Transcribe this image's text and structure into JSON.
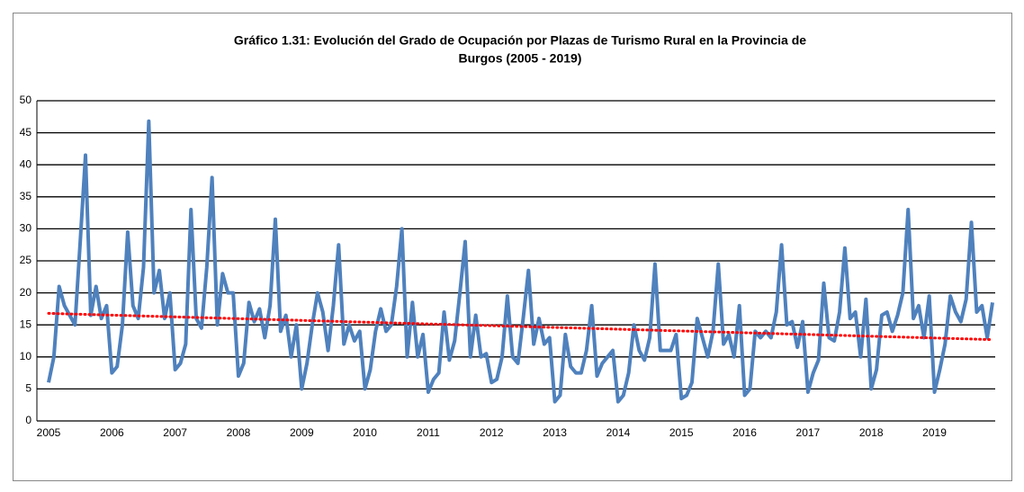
{
  "chart_data": {
    "type": "line",
    "title": [
      "Gráfico 1.31: Evolución del Grado de Ocupación por Plazas de Turismo Rural en la Provincia de",
      "Burgos (2005 - 2019)"
    ],
    "categories": [
      "2005",
      null,
      null,
      null,
      null,
      null,
      null,
      null,
      null,
      null,
      null,
      null,
      "2006",
      null,
      null,
      null,
      null,
      null,
      null,
      null,
      null,
      null,
      null,
      null,
      "2007",
      null,
      null,
      null,
      null,
      null,
      null,
      null,
      null,
      null,
      null,
      null,
      "2008",
      null,
      null,
      null,
      null,
      null,
      null,
      null,
      null,
      null,
      null,
      null,
      "2009",
      null,
      null,
      null,
      null,
      null,
      null,
      null,
      null,
      null,
      null,
      null,
      "2010",
      null,
      null,
      null,
      null,
      null,
      null,
      null,
      null,
      null,
      null,
      null,
      "2011",
      null,
      null,
      null,
      null,
      null,
      null,
      null,
      null,
      null,
      null,
      null,
      "2012",
      null,
      null,
      null,
      null,
      null,
      null,
      null,
      null,
      null,
      null,
      null,
      "2013",
      null,
      null,
      null,
      null,
      null,
      null,
      null,
      null,
      null,
      null,
      null,
      "2014",
      null,
      null,
      null,
      null,
      null,
      null,
      null,
      null,
      null,
      null,
      null,
      "2015",
      null,
      null,
      null,
      null,
      null,
      null,
      null,
      null,
      null,
      null,
      null,
      "2016",
      null,
      null,
      null,
      null,
      null,
      null,
      null,
      null,
      null,
      null,
      null,
      "2017",
      null,
      null,
      null,
      null,
      null,
      null,
      null,
      null,
      null,
      null,
      null,
      "2018",
      null,
      null,
      null,
      null,
      null,
      null,
      null,
      null,
      null,
      null,
      null,
      "2019",
      null,
      null,
      null,
      null,
      null,
      null,
      null,
      null,
      null,
      null,
      null
    ],
    "series": [
      {
        "color": "#4f81bd",
        "values": [
          6,
          10,
          21,
          18,
          16.5,
          15,
          28,
          41.5,
          16.5,
          21,
          16,
          18,
          7.5,
          8.5,
          15,
          29.5,
          18,
          16,
          24,
          46.8,
          20,
          23.5,
          16,
          20,
          8,
          9,
          12,
          33,
          16,
          14.5,
          24,
          38,
          15,
          23,
          20,
          20,
          7,
          9,
          18.5,
          15.5,
          17.5,
          13,
          18,
          31.5,
          14,
          16.5,
          10,
          15,
          5,
          9,
          15,
          20,
          17,
          11,
          18,
          27.5,
          12,
          15,
          12.5,
          14,
          5,
          8,
          14,
          17.5,
          14,
          15,
          21,
          30,
          10,
          18.5,
          10,
          13.5,
          4.5,
          6.5,
          7.5,
          17,
          9.5,
          12.5,
          20,
          28,
          10,
          16.5,
          10,
          10.5,
          6,
          6.5,
          10,
          19.5,
          10,
          9,
          16,
          23.5,
          12,
          16,
          12,
          13,
          3,
          4,
          13.5,
          8.5,
          7.5,
          7.5,
          11,
          18,
          7,
          9,
          10,
          11,
          3,
          4,
          7.5,
          15,
          11,
          9.5,
          13,
          24.5,
          11,
          11,
          11,
          13.5,
          3.5,
          4,
          6,
          16,
          13,
          10,
          14,
          24.5,
          12,
          13.5,
          10,
          18,
          4,
          5,
          14,
          13,
          14,
          13,
          17,
          27.5,
          15,
          15.5,
          11.5,
          15.5,
          4.5,
          7.5,
          9.5,
          21.5,
          13,
          12.5,
          17,
          27,
          16,
          17,
          10,
          19,
          5,
          8,
          16.5,
          17,
          14,
          16.5,
          20,
          33,
          16,
          18,
          13,
          19.5,
          4.5,
          8,
          12,
          19.5,
          17,
          15.5,
          19,
          31,
          17,
          18,
          13,
          18.5
        ]
      }
    ],
    "trendline": {
      "values": [
        16.8,
        12.7
      ],
      "color": "#ff0000"
    },
    "ylim": [
      0,
      50
    ],
    "yticks": [
      0,
      5,
      10,
      15,
      20,
      25,
      30,
      35,
      40,
      45,
      50
    ],
    "grid": true
  }
}
